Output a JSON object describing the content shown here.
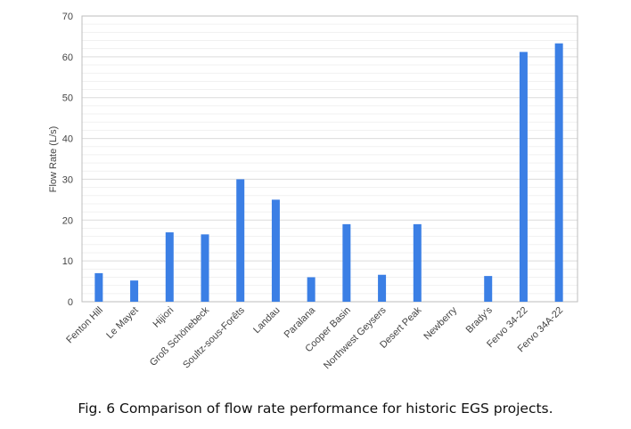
{
  "caption": "Fig.  6 Comparison of flow rate performance for historic EGS projects.",
  "chart_data": {
    "type": "bar",
    "title": "",
    "xlabel": "",
    "ylabel": "Flow Rate (L/s)",
    "ylim": [
      0,
      70
    ],
    "yticks": [
      0,
      10,
      20,
      30,
      40,
      50,
      60,
      70
    ],
    "grid": true,
    "bar_color": "#3b7fe5",
    "categories": [
      "Fenton Hill",
      "Le Mayet",
      "Hijiori",
      "Groß Schönebeck",
      "Soultz-sous-Forêts",
      "Landau",
      "Paralana",
      "Cooper Basin",
      "Northwest Geysers",
      "Desert Peak",
      "Newberry",
      "Brady's",
      "Fervo 34-22",
      "Fervo 34A-22"
    ],
    "values": [
      7,
      5.2,
      17,
      16.5,
      30,
      25,
      6,
      19,
      6.6,
      19,
      0,
      6.3,
      61.2,
      63.3
    ]
  }
}
